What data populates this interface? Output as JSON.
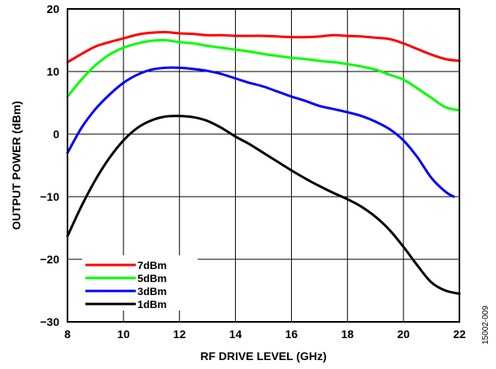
{
  "chart_data": {
    "type": "line",
    "xlabel": "RF DRIVE LEVEL (GHz)",
    "ylabel": "OUTPUT POWER (dBm)",
    "xlim": [
      8,
      22
    ],
    "ylim": [
      -30,
      20
    ],
    "xticks": [
      8,
      10,
      12,
      14,
      16,
      18,
      20,
      22
    ],
    "yticks": [
      20,
      10,
      0,
      -10,
      -20,
      -30
    ],
    "ytick_labels": [
      "20",
      "10",
      "0",
      "−10",
      "−20",
      "−30"
    ],
    "grid": true,
    "legend_position": "bottom-left",
    "figure_id": "15002-009",
    "series": [
      {
        "name": "7dBm",
        "color": "#ff0000",
        "x": [
          8,
          8.5,
          9,
          9.5,
          10,
          10.5,
          11,
          11.5,
          12,
          12.5,
          13,
          13.5,
          14,
          14.5,
          15,
          15.5,
          16,
          16.5,
          17,
          17.5,
          18,
          18.5,
          19,
          19.5,
          20,
          20.5,
          21,
          21.5,
          22
        ],
        "values": [
          11.5,
          12.8,
          14.0,
          14.7,
          15.3,
          15.9,
          16.2,
          16.3,
          16.1,
          16.0,
          15.8,
          15.8,
          15.7,
          15.7,
          15.7,
          15.6,
          15.5,
          15.5,
          15.6,
          15.8,
          15.7,
          15.6,
          15.4,
          15.2,
          14.5,
          13.6,
          12.7,
          12.0,
          11.7
        ]
      },
      {
        "name": "5dBm",
        "color": "#00ff00",
        "x": [
          8,
          8.5,
          9,
          9.5,
          10,
          10.5,
          11,
          11.5,
          12,
          12.5,
          13,
          13.5,
          14,
          14.5,
          15,
          15.5,
          16,
          16.5,
          17,
          17.5,
          18,
          18.5,
          19,
          19.5,
          20,
          20.5,
          21,
          21.5,
          22
        ],
        "values": [
          6.0,
          8.7,
          11.0,
          12.7,
          13.8,
          14.5,
          14.9,
          15.0,
          14.7,
          14.5,
          14.1,
          13.8,
          13.5,
          13.2,
          12.8,
          12.5,
          12.2,
          12.0,
          11.7,
          11.5,
          11.2,
          10.8,
          10.3,
          9.5,
          8.7,
          7.3,
          5.8,
          4.3,
          3.8
        ]
      },
      {
        "name": "3dBm",
        "color": "#0000ff",
        "x": [
          8,
          8.5,
          9,
          9.5,
          10,
          10.5,
          11,
          11.5,
          12,
          12.5,
          13,
          13.5,
          14,
          14.5,
          15,
          15.5,
          16,
          16.5,
          17,
          17.5,
          18,
          18.5,
          19,
          19.5,
          20,
          20.5,
          21,
          21.5,
          21.8
        ],
        "values": [
          -3.0,
          1.0,
          4.0,
          6.3,
          8.2,
          9.5,
          10.3,
          10.6,
          10.6,
          10.4,
          10.1,
          9.6,
          8.9,
          8.2,
          7.6,
          6.8,
          6.0,
          5.3,
          4.5,
          4.0,
          3.5,
          2.9,
          2.0,
          0.8,
          -1.0,
          -3.7,
          -7.0,
          -9.2,
          -10.0
        ]
      },
      {
        "name": "1dBm",
        "color": "#000000",
        "x": [
          8,
          8.5,
          9,
          9.5,
          10,
          10.5,
          11,
          11.5,
          12,
          12.5,
          13,
          13.5,
          14,
          14.5,
          15,
          15.5,
          16,
          16.5,
          17,
          17.5,
          18,
          18.5,
          19,
          19.5,
          20,
          20.5,
          21,
          21.5,
          22
        ],
        "values": [
          -16.3,
          -11.5,
          -7.3,
          -3.8,
          -1.0,
          1.0,
          2.2,
          2.8,
          2.9,
          2.7,
          2.1,
          1.0,
          -0.4,
          -1.6,
          -3.0,
          -4.4,
          -5.8,
          -7.1,
          -8.3,
          -9.4,
          -10.4,
          -11.6,
          -13.2,
          -15.3,
          -18.0,
          -21.0,
          -23.7,
          -25.0,
          -25.5
        ]
      }
    ]
  }
}
